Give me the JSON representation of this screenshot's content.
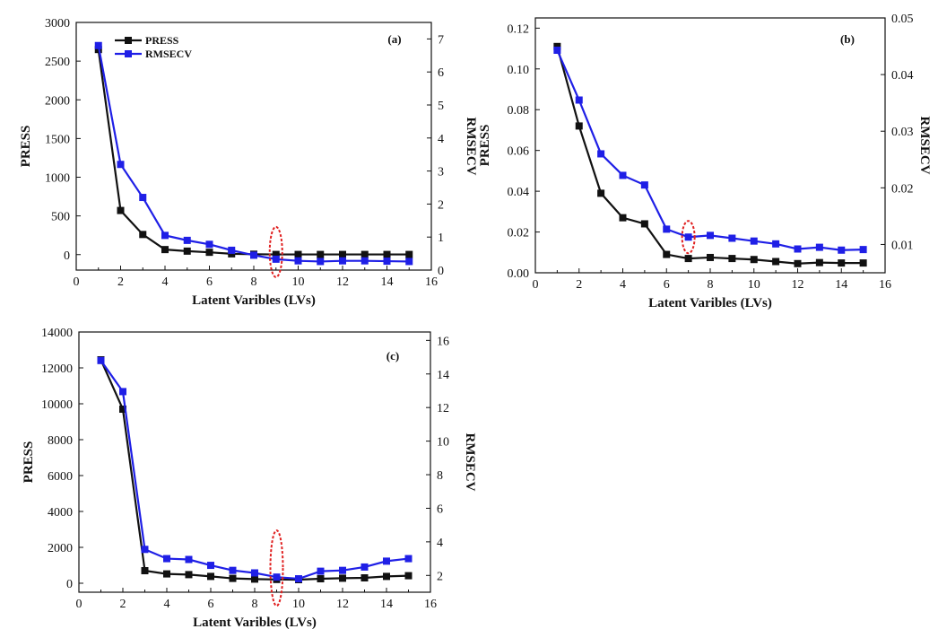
{
  "figure": {
    "background": "#ffffff"
  },
  "legend": {
    "press_label": "PRESS",
    "rmsecv_label": "RMSECV"
  },
  "colors": {
    "press": "#111111",
    "rmsecv": "#1f1fe6",
    "marker_circle": "#e02020"
  },
  "chart_data": [
    {
      "panel": "(a)",
      "type": "line",
      "xlabel": "Latent Varibles (LVs)",
      "ylabel_left": "PRESS",
      "ylabel_right": "RMSECV",
      "xlim": [
        0,
        16
      ],
      "ylim_left": [
        -200,
        3000
      ],
      "ylim_right": [
        0,
        7.5
      ],
      "x_ticks": [
        0,
        2,
        4,
        6,
        8,
        10,
        12,
        14,
        16
      ],
      "y_left_ticks": [
        0,
        500,
        1000,
        1500,
        2000,
        2500,
        3000
      ],
      "y_right_ticks": [
        0,
        1,
        2,
        3,
        4,
        5,
        6,
        7
      ],
      "x": [
        1,
        2,
        3,
        4,
        5,
        6,
        7,
        8,
        9,
        10,
        11,
        12,
        13,
        14,
        15
      ],
      "selected_lv": 9,
      "legend_position": "top-left",
      "series": [
        {
          "name": "PRESS",
          "axis": "left",
          "values": [
            2650,
            570,
            260,
            65,
            45,
            30,
            10,
            5,
            2,
            2,
            2,
            2,
            2,
            2,
            2
          ]
        },
        {
          "name": "RMSECV",
          "axis": "right",
          "values": [
            6.8,
            3.2,
            2.2,
            1.05,
            0.9,
            0.78,
            0.6,
            0.45,
            0.33,
            0.28,
            0.26,
            0.28,
            0.28,
            0.27,
            0.26
          ]
        }
      ]
    },
    {
      "panel": "(b)",
      "type": "line",
      "xlabel": "Latent Varibles (LVs)",
      "ylabel_left": "PRESS",
      "ylabel_right": "RMSECV",
      "xlim": [
        0,
        16
      ],
      "ylim_left": [
        0,
        0.125
      ],
      "ylim_right": [
        0.005,
        0.05
      ],
      "x_ticks": [
        0,
        2,
        4,
        6,
        8,
        10,
        12,
        14,
        16
      ],
      "y_left_ticks": [
        0.0,
        0.02,
        0.04,
        0.06,
        0.08,
        0.1,
        0.12
      ],
      "y_right_ticks": [
        0.01,
        0.02,
        0.03,
        0.04,
        0.05
      ],
      "x": [
        1,
        2,
        3,
        4,
        5,
        6,
        7,
        8,
        9,
        10,
        11,
        12,
        13,
        14,
        15
      ],
      "selected_lv": 7,
      "series": [
        {
          "name": "PRESS",
          "axis": "left",
          "values": [
            0.111,
            0.072,
            0.039,
            0.027,
            0.024,
            0.009,
            0.007,
            0.0075,
            0.007,
            0.0065,
            0.0055,
            0.0045,
            0.005,
            0.0048,
            0.0048
          ]
        },
        {
          "name": "RMSECV",
          "axis": "right",
          "values": [
            0.0443,
            0.0355,
            0.026,
            0.0222,
            0.0205,
            0.0127,
            0.0113,
            0.0116,
            0.0111,
            0.0106,
            0.0101,
            0.0092,
            0.0095,
            0.009,
            0.0091
          ]
        }
      ]
    },
    {
      "panel": "(c)",
      "type": "line",
      "xlabel": "Latent Varibles (LVs)",
      "ylabel_left": "PRESS",
      "ylabel_right": "RMSECV",
      "xlim": [
        0,
        16
      ],
      "ylim_left": [
        -500,
        14000
      ],
      "ylim_right": [
        1.0,
        16.5
      ],
      "x_ticks": [
        0,
        2,
        4,
        6,
        8,
        10,
        12,
        14,
        16
      ],
      "y_left_ticks": [
        0,
        2000,
        4000,
        6000,
        8000,
        10000,
        12000,
        14000
      ],
      "y_right_ticks": [
        2,
        4,
        6,
        8,
        10,
        12,
        14,
        16
      ],
      "x": [
        1,
        2,
        3,
        4,
        5,
        6,
        7,
        8,
        9,
        10,
        11,
        12,
        13,
        14,
        15
      ],
      "selected_lv": 9,
      "series": [
        {
          "name": "PRESS",
          "axis": "left",
          "values": [
            12450,
            9700,
            700,
            520,
            480,
            380,
            270,
            230,
            210,
            200,
            250,
            280,
            300,
            380,
            420
          ]
        },
        {
          "name": "RMSECV",
          "axis": "right",
          "values": [
            14.8,
            12.95,
            3.55,
            3.0,
            2.95,
            2.6,
            2.3,
            2.15,
            1.9,
            1.8,
            2.25,
            2.3,
            2.5,
            2.85,
            3.0
          ]
        }
      ]
    }
  ]
}
